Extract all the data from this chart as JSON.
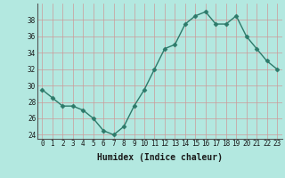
{
  "x": [
    0,
    1,
    2,
    3,
    4,
    5,
    6,
    7,
    8,
    9,
    10,
    11,
    12,
    13,
    14,
    15,
    16,
    17,
    18,
    19,
    20,
    21,
    22,
    23
  ],
  "y": [
    29.5,
    28.5,
    27.5,
    27.5,
    27.0,
    26.0,
    24.5,
    24.0,
    25.0,
    27.5,
    29.5,
    32.0,
    34.5,
    35.0,
    37.5,
    38.5,
    39.0,
    37.5,
    37.5,
    38.5,
    36.0,
    34.5,
    33.0,
    32.0
  ],
  "line_color": "#2d7a6a",
  "marker": "D",
  "marker_size": 2.5,
  "bg_color": "#b3e8e0",
  "grid_color": "#cc9999",
  "xlabel": "Humidex (Indice chaleur)",
  "xlim": [
    -0.5,
    23.5
  ],
  "ylim": [
    23.5,
    40
  ],
  "yticks": [
    24,
    26,
    28,
    30,
    32,
    34,
    36,
    38
  ],
  "xticks": [
    0,
    1,
    2,
    3,
    4,
    5,
    6,
    7,
    8,
    9,
    10,
    11,
    12,
    13,
    14,
    15,
    16,
    17,
    18,
    19,
    20,
    21,
    22,
    23
  ],
  "tick_label_size": 5.5,
  "xlabel_size": 7,
  "line_width": 1.0
}
